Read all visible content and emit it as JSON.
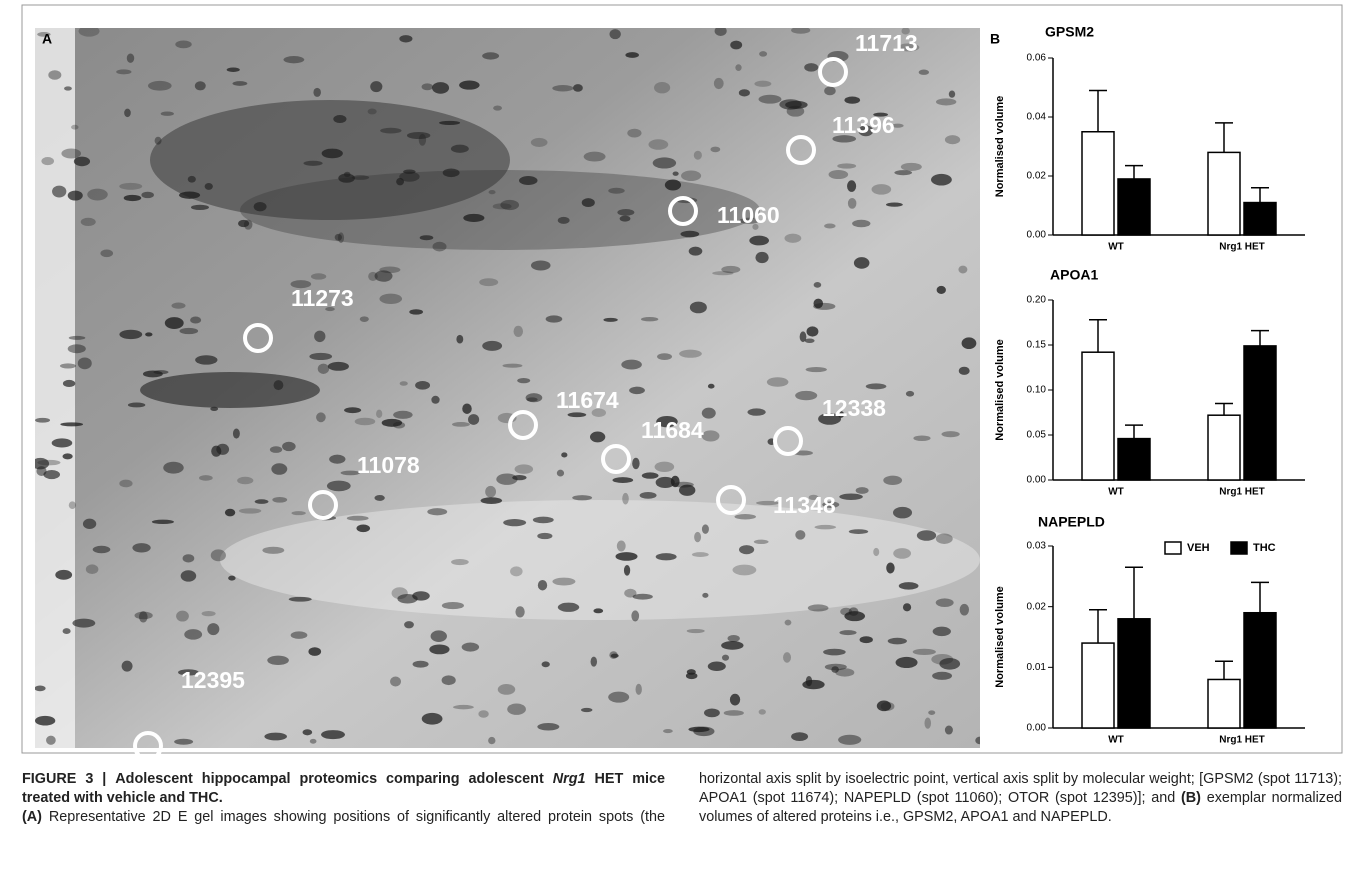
{
  "panel_a": {
    "label": "A",
    "spots": [
      {
        "label": "11713"
      },
      {
        "label": "11396"
      },
      {
        "label": "11060"
      },
      {
        "label": "11273"
      },
      {
        "label": "11674"
      },
      {
        "label": "11684"
      },
      {
        "label": "12338"
      },
      {
        "label": "11078"
      },
      {
        "label": "11348"
      },
      {
        "label": "12395"
      }
    ]
  },
  "panel_b": {
    "label": "B"
  },
  "chart_data": [
    {
      "type": "bar",
      "title": "GPSM2",
      "ylabel": "Normalised volume",
      "categories": [
        "WT",
        "Nrg1 HET"
      ],
      "series": [
        {
          "color": "#ffffff",
          "values": [
            0.035,
            0.028
          ],
          "errors": [
            0.014,
            0.01
          ]
        },
        {
          "color": "#000000",
          "values": [
            0.019,
            0.011
          ],
          "errors": [
            0.0045,
            0.005
          ]
        }
      ],
      "ylim": [
        0,
        0.06
      ],
      "yticks": [
        {
          "value": 0,
          "label": "0.00"
        },
        0.02,
        0.04,
        0.06
      ]
    },
    {
      "type": "bar",
      "title": "APOA1",
      "ylabel": "Normalised volume",
      "categories": [
        "WT",
        "Nrg1 HET"
      ],
      "series": [
        {
          "color": "#ffffff",
          "values": [
            0.142,
            0.072
          ],
          "errors": [
            0.036,
            0.013
          ]
        },
        {
          "color": "#000000",
          "values": [
            0.046,
            0.149
          ],
          "errors": [
            0.015,
            0.017
          ]
        }
      ],
      "ylim": [
        0,
        0.2
      ],
      "yticks": [
        {
          "value": 0,
          "label": "0.00"
        },
        0.05,
        {
          "value": 0.1,
          "label": "0.10"
        },
        0.15,
        {
          "value": 0.2,
          "label": "0.20"
        }
      ]
    },
    {
      "type": "bar",
      "title": "NAPEPLD",
      "ylabel": "Normalised volume",
      "categories": [
        "WT",
        "Nrg1 HET"
      ],
      "series": [
        {
          "name": "VEH",
          "color": "#ffffff",
          "values": [
            0.014,
            0.008
          ],
          "errors": [
            0.0055,
            0.003
          ]
        },
        {
          "name": "THC",
          "color": "#000000",
          "values": [
            0.018,
            0.019
          ],
          "errors": [
            0.0085,
            0.005
          ]
        }
      ],
      "ylim": [
        0,
        0.03
      ],
      "yticks": [
        {
          "value": 0,
          "label": "0.00"
        },
        0.01,
        0.02,
        0.03
      ],
      "legend": "top-right"
    }
  ],
  "caption": {
    "figure_label": "FIGURE 3 |",
    "title_start": "Adolescent hippocampal proteomics comparing adolescent",
    "title_gene": "Nrg1",
    "title_end": "HET mice treated with vehicle and THC.",
    "a_label": "(A)",
    "a_text": "Representative 2D E gel images showing positions of significantly altered protein spots (the horizontal axis split by isoelectric point, vertical axis split by molecular weight; [GPSM2 (spot 11713); APOA1 (spot 11674); NAPEPLD (spot 11060); OTOR (spot 12395)]; and",
    "b_label": "(B)",
    "b_text": "exemplar normalized volumes of altered proteins i.e., GPSM2, APOA1 and NAPEPLD."
  }
}
